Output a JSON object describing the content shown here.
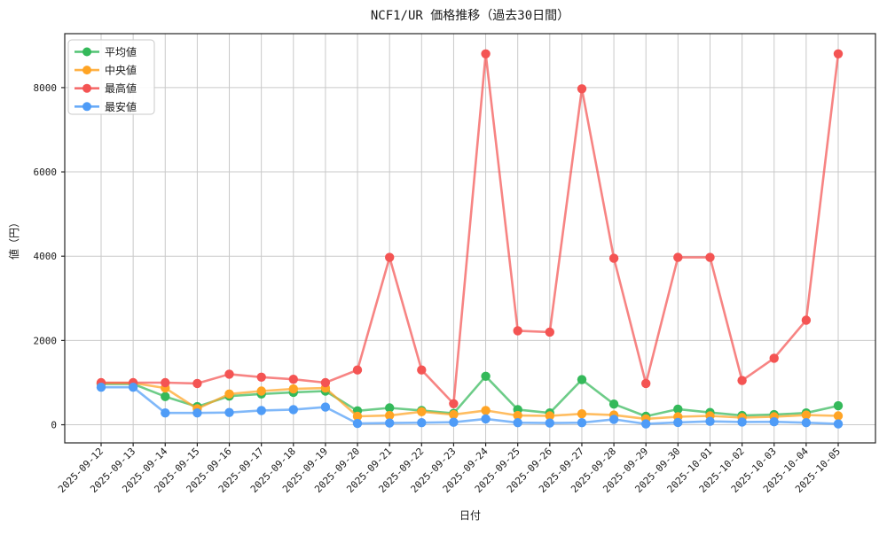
{
  "title": "NCF1/UR 価格推移（過去30日間）",
  "chart_data": {
    "type": "line",
    "title": "NCF1/UR 価格推移（過去30日間）",
    "xlabel": "日付",
    "ylabel": "値（円）",
    "grid": true,
    "legend_position": "upper left",
    "ylim": [
      -430,
      9280
    ],
    "yticks": [
      0,
      2000,
      4000,
      6000,
      8000
    ],
    "yticklabels": [
      "0",
      "2000",
      "4000",
      "6000",
      "8000"
    ],
    "x": [
      "2025-09-12",
      "2025-09-13",
      "2025-09-14",
      "2025-09-15",
      "2025-09-16",
      "2025-09-17",
      "2025-09-18",
      "2025-09-19",
      "2025-09-20",
      "2025-09-21",
      "2025-09-22",
      "2025-09-23",
      "2025-09-24",
      "2025-09-25",
      "2025-09-26",
      "2025-09-27",
      "2025-09-28",
      "2025-09-29",
      "2025-09-30",
      "2025-10-01",
      "2025-10-02",
      "2025-10-03",
      "2025-10-04",
      "2025-10-05"
    ],
    "series": [
      {
        "key": "mean",
        "name": "平均値",
        "color": "#34b95a",
        "values": [
          970,
          970,
          670,
          430,
          680,
          730,
          770,
          800,
          330,
          400,
          340,
          270,
          1150,
          360,
          280,
          1070,
          490,
          200,
          370,
          290,
          220,
          240,
          280,
          450
        ]
      },
      {
        "key": "median",
        "name": "中央値",
        "color": "#ffa424",
        "values": [
          990,
          990,
          870,
          380,
          730,
          800,
          850,
          870,
          200,
          220,
          310,
          240,
          340,
          220,
          210,
          260,
          230,
          140,
          190,
          210,
          170,
          190,
          230,
          210
        ]
      },
      {
        "key": "max",
        "name": "最高値",
        "color": "#f45453",
        "values": [
          1000,
          1000,
          1000,
          980,
          1200,
          1130,
          1080,
          1000,
          1300,
          3970,
          1300,
          500,
          8800,
          2230,
          2200,
          7970,
          3950,
          980,
          3970,
          3970,
          1050,
          1580,
          2480,
          8800
        ]
      },
      {
        "key": "min",
        "name": "最安値",
        "color": "#4f9cf7",
        "values": [
          890,
          890,
          280,
          280,
          290,
          340,
          360,
          420,
          30,
          40,
          50,
          60,
          140,
          50,
          40,
          50,
          130,
          20,
          55,
          80,
          65,
          70,
          50,
          20
        ]
      }
    ]
  }
}
